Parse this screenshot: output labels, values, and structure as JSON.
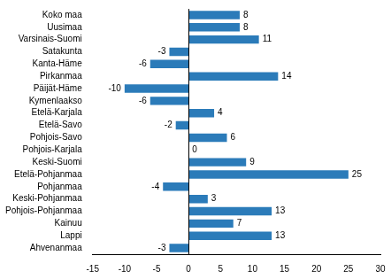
{
  "chart_data": {
    "type": "bar",
    "orientation": "horizontal",
    "categories": [
      "Koko maa",
      "Uusimaa",
      "Varsinais-Suomi",
      "Satakunta",
      "Kanta-Häme",
      "Pirkanmaa",
      "Päijät-Häme",
      "Kymenlaakso",
      "Etelä-Karjala",
      "Etelä-Savo",
      "Pohjois-Savo",
      "Pohjois-Karjala",
      "Keski-Suomi",
      "Etelä-Pohjanmaa",
      "Pohjanmaa",
      "Keski-Pohjanmaa",
      "Pohjois-Pohjanmaa",
      "Kainuu",
      "Lappi",
      "Ahvenanmaa"
    ],
    "values": [
      8,
      8,
      11,
      -3,
      -6,
      14,
      -10,
      -6,
      4,
      -2,
      6,
      0,
      9,
      25,
      -4,
      3,
      13,
      7,
      13,
      -3
    ],
    "color": "#2b7bb9",
    "xlim": [
      -15,
      30
    ],
    "xticks": [
      -15,
      -10,
      -5,
      0,
      5,
      10,
      15,
      20,
      25,
      30
    ],
    "grid": false,
    "data_labels": true
  }
}
